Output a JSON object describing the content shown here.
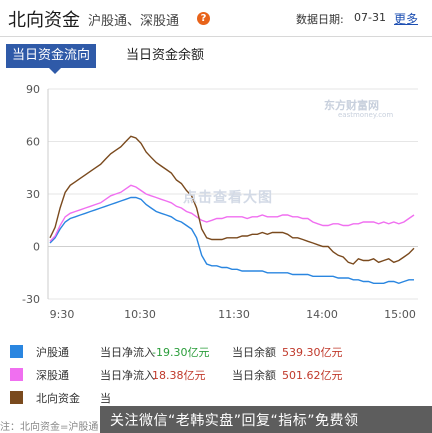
{
  "header": {
    "title": "北向资金",
    "subtitle": "沪股通、深股通",
    "help_glyph": "?",
    "date_label": "数据日期:",
    "date_value": "07-31",
    "more_label": "更多"
  },
  "tabs": [
    {
      "label": "当日资金流向",
      "active": true
    },
    {
      "label": "当日资金余额",
      "active": false
    }
  ],
  "chart_data": {
    "type": "line",
    "x_ticks": [
      "9:30",
      "10:30",
      "11:30",
      "14:00",
      "15:00"
    ],
    "ylim": [
      -30,
      90
    ],
    "y_ticks": [
      -30,
      0,
      30,
      60,
      90
    ],
    "grid": "horizontal",
    "series": [
      {
        "name": "沪股通",
        "color": "#2a86e0",
        "values": [
          2,
          5,
          10,
          14,
          16,
          17,
          18,
          19,
          20,
          21,
          22,
          23,
          24,
          25,
          26,
          27,
          28,
          28,
          27,
          24,
          22,
          20,
          19,
          18,
          17,
          15,
          14,
          12,
          10,
          5,
          -5,
          -10,
          -11,
          -11,
          -12,
          -12,
          -13,
          -13,
          -14,
          -14,
          -14,
          -14,
          -14,
          -15,
          -15,
          -15,
          -15,
          -15,
          -16,
          -16,
          -16,
          -16,
          -17,
          -17,
          -17,
          -17,
          -17,
          -18,
          -18,
          -18,
          -19,
          -19,
          -20,
          -20,
          -21,
          -21,
          -21,
          -20,
          -20,
          -21,
          -20,
          -19,
          -19
        ]
      },
      {
        "name": "深股通",
        "color": "#f06ff0",
        "values": [
          3,
          6,
          12,
          17,
          19,
          20,
          21,
          22,
          23,
          24,
          25,
          27,
          29,
          30,
          31,
          33,
          35,
          34,
          32,
          30,
          29,
          28,
          27,
          26,
          25,
          23,
          22,
          20,
          19,
          17,
          15,
          14,
          15,
          16,
          16,
          17,
          17,
          17,
          17,
          16,
          17,
          17,
          18,
          17,
          17,
          17,
          18,
          18,
          17,
          17,
          16,
          16,
          14,
          13,
          12,
          12,
          13,
          13,
          12,
          12,
          13,
          13,
          14,
          14,
          14,
          13,
          14,
          13,
          14,
          13,
          14,
          16,
          18
        ]
      },
      {
        "name": "北向资金",
        "color": "#7a4a1e",
        "values": [
          5,
          11,
          22,
          31,
          35,
          37,
          39,
          41,
          43,
          45,
          47,
          50,
          53,
          55,
          57,
          60,
          63,
          62,
          59,
          54,
          51,
          48,
          46,
          44,
          42,
          38,
          36,
          32,
          29,
          22,
          10,
          5,
          4,
          4,
          4,
          5,
          5,
          5,
          6,
          6,
          7,
          7,
          8,
          7,
          8,
          8,
          8,
          7,
          5,
          5,
          4,
          3,
          2,
          1,
          0,
          0,
          -3,
          -5,
          -6,
          -9,
          -10,
          -7,
          -8,
          -8,
          -7,
          -9,
          -8,
          -7,
          -9,
          -8,
          -6,
          -4,
          -1
        ]
      }
    ]
  },
  "watermarks": {
    "logo": "东方财富网",
    "url": "eastmoney.com",
    "center": "点击查看大图"
  },
  "legend": [
    {
      "name": "沪股通",
      "color": "#2a86e0",
      "flow_label": "当日净流入",
      "flow_value": "-19.30亿元",
      "flow_sign": "neg",
      "balance_label": "当日余额",
      "balance_value": "539.30亿元"
    },
    {
      "name": "深股通",
      "color": "#f06ff0",
      "flow_label": "当日净流入",
      "flow_value": "18.38亿元",
      "flow_sign": "pos",
      "balance_label": "当日余额",
      "balance_value": "501.62亿元"
    },
    {
      "name": "北向资金",
      "color": "#7a4a1e",
      "flow_label": "当",
      "flow_value": "",
      "flow_sign": "pos",
      "balance_label": "",
      "balance_value": ""
    }
  ],
  "banner": {
    "text": "关注微信“老韩实盘”回复“指标”免费领"
  },
  "footer": {
    "partial_text": "注：北向资金=沪股通"
  }
}
